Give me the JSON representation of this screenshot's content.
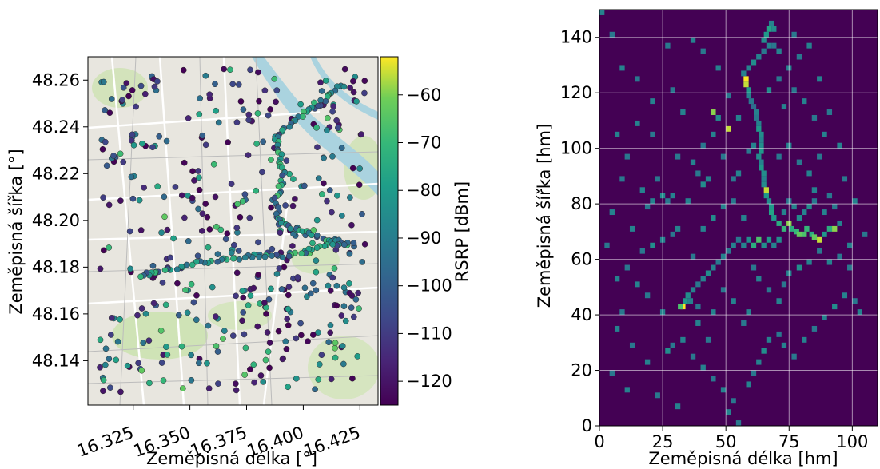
{
  "chart_data": [
    {
      "type": "scatter",
      "xlabel": "Zeměpisná délka [°]",
      "ylabel": "Zeměpisná šířka [°]",
      "xlim": [
        16.305,
        16.433
      ],
      "ylim": [
        48.121,
        48.27
      ],
      "xticks": [
        "16.325",
        "16.350",
        "16.375",
        "16.400",
        "16.425"
      ],
      "yticks": [
        "48.14",
        "48.16",
        "48.18",
        "48.20",
        "48.22",
        "48.24",
        "48.26"
      ],
      "colorbar": {
        "label": "RSRP [dBm]",
        "range": [
          -125,
          -52
        ],
        "ticks": [
          "−60",
          "−70",
          "−80",
          "−90",
          "−100",
          "−110",
          "−120"
        ],
        "colormap": "viridis"
      },
      "background": "street map of Vienna",
      "grid": false
    },
    {
      "type": "heatmap",
      "xlabel": "Zeměpisná délka [hm]",
      "ylabel": "Zeměpisná šířka [hm]",
      "xlim": [
        0,
        110
      ],
      "ylim": [
        0,
        150
      ],
      "xticks": [
        "0",
        "25",
        "50",
        "75",
        "100"
      ],
      "yticks": [
        "0",
        "20",
        "40",
        "60",
        "80",
        "100",
        "120",
        "140"
      ],
      "colormap": "viridis",
      "grid": true,
      "cells": [
        [
          57,
          124,
          1.0
        ],
        [
          57,
          122,
          0.95
        ],
        [
          58,
          120,
          0.6
        ],
        [
          58,
          118,
          0.5
        ],
        [
          59,
          116,
          0.45
        ],
        [
          60,
          114,
          0.4
        ],
        [
          61,
          112,
          0.5
        ],
        [
          61,
          110,
          0.45
        ],
        [
          62,
          108,
          0.5
        ],
        [
          62,
          106,
          0.6
        ],
        [
          63,
          104,
          0.55
        ],
        [
          63,
          102,
          0.5
        ],
        [
          63,
          100,
          0.55
        ],
        [
          63,
          98,
          0.6
        ],
        [
          62,
          96,
          0.55
        ],
        [
          63,
          94,
          0.5
        ],
        [
          63,
          92,
          0.6
        ],
        [
          64,
          90,
          0.55
        ],
        [
          64,
          88,
          0.5
        ],
        [
          64,
          86,
          0.55
        ],
        [
          65,
          84,
          0.95
        ],
        [
          65,
          82,
          0.6
        ],
        [
          66,
          80,
          0.55
        ],
        [
          67,
          78,
          0.6
        ],
        [
          67,
          76,
          0.65
        ],
        [
          68,
          74,
          0.6
        ],
        [
          70,
          72,
          0.7
        ],
        [
          72,
          70,
          0.75
        ],
        [
          74,
          72,
          0.9
        ],
        [
          75,
          70,
          0.7
        ],
        [
          77,
          69,
          0.75
        ],
        [
          78,
          68,
          0.85
        ],
        [
          80,
          68,
          0.8
        ],
        [
          81,
          70,
          0.75
        ],
        [
          83,
          68,
          0.7
        ],
        [
          84,
          67,
          0.85
        ],
        [
          86,
          66,
          0.95
        ],
        [
          88,
          68,
          0.6
        ],
        [
          90,
          70,
          0.7
        ],
        [
          92,
          70,
          0.9
        ],
        [
          94,
          72,
          0.5
        ],
        [
          78,
          74,
          0.55
        ],
        [
          80,
          76,
          0.5
        ],
        [
          82,
          78,
          0.55
        ],
        [
          84,
          80,
          0.45
        ],
        [
          76,
          78,
          0.5
        ],
        [
          74,
          80,
          0.45
        ],
        [
          72,
          76,
          0.5
        ],
        [
          70,
          66,
          0.55
        ],
        [
          68,
          64,
          0.5
        ],
        [
          66,
          66,
          0.6
        ],
        [
          64,
          64,
          0.55
        ],
        [
          62,
          66,
          0.8
        ],
        [
          60,
          64,
          0.7
        ],
        [
          58,
          66,
          0.55
        ],
        [
          56,
          64,
          0.5
        ],
        [
          54,
          66,
          0.45
        ],
        [
          52,
          64,
          0.5
        ],
        [
          50,
          62,
          0.45
        ],
        [
          48,
          60,
          0.5
        ],
        [
          46,
          58,
          0.45
        ],
        [
          44,
          56,
          0.5
        ],
        [
          42,
          54,
          0.55
        ],
        [
          40,
          52,
          0.5
        ],
        [
          38,
          50,
          0.45
        ],
        [
          36,
          48,
          0.5
        ],
        [
          34,
          46,
          0.55
        ],
        [
          33,
          44,
          0.6
        ],
        [
          32,
          42,
          1.0
        ],
        [
          31,
          42,
          0.8
        ],
        [
          35,
          44,
          0.5
        ],
        [
          38,
          42,
          0.45
        ],
        [
          64,
          138,
          0.55
        ],
        [
          65,
          140,
          0.6
        ],
        [
          66,
          142,
          0.65
        ],
        [
          67,
          144,
          0.5
        ],
        [
          68,
          142,
          0.55
        ],
        [
          66,
          136,
          0.5
        ],
        [
          64,
          134,
          0.45
        ],
        [
          62,
          132,
          0.5
        ],
        [
          60,
          130,
          0.55
        ],
        [
          58,
          128,
          0.5
        ],
        [
          56,
          126,
          0.5
        ],
        [
          68,
          136,
          0.45
        ],
        [
          70,
          134,
          0.5
        ],
        [
          60,
          100,
          0.5
        ],
        [
          58,
          98,
          0.45
        ],
        [
          50,
          106,
          0.95
        ],
        [
          44,
          112,
          0.9
        ],
        [
          46,
          110,
          0.55
        ],
        [
          54,
          90,
          0.5
        ],
        [
          52,
          88,
          0.45
        ],
        [
          42,
          88,
          0.5
        ],
        [
          40,
          86,
          0.55
        ],
        [
          38,
          90,
          0.45
        ],
        [
          36,
          94,
          0.5
        ],
        [
          30,
          96,
          0.45
        ],
        [
          28,
          82,
          0.5
        ],
        [
          26,
          80,
          0.45
        ],
        [
          24,
          82,
          0.55
        ],
        [
          20,
          80,
          0.5
        ],
        [
          18,
          78,
          0.45
        ],
        [
          16,
          84,
          0.5
        ],
        [
          22,
          88,
          0.45
        ],
        [
          32,
          112,
          0.5
        ],
        [
          28,
          120,
          0.45
        ],
        [
          20,
          116,
          0.5
        ],
        [
          14,
          124,
          0.45
        ],
        [
          8,
          128,
          0.5
        ],
        [
          4,
          140,
          0.45
        ],
        [
          0,
          148,
          0.5
        ],
        [
          26,
          136,
          0.45
        ],
        [
          36,
          138,
          0.5
        ],
        [
          40,
          134,
          0.45
        ],
        [
          46,
          128,
          0.5
        ],
        [
          50,
          118,
          0.45
        ],
        [
          30,
          70,
          0.5
        ],
        [
          28,
          68,
          0.45
        ],
        [
          24,
          66,
          0.5
        ],
        [
          20,
          64,
          0.55
        ],
        [
          16,
          62,
          0.45
        ],
        [
          12,
          70,
          0.5
        ],
        [
          10,
          56,
          0.45
        ],
        [
          14,
          50,
          0.5
        ],
        [
          18,
          46,
          0.45
        ],
        [
          24,
          40,
          0.5
        ],
        [
          26,
          26,
          0.55
        ],
        [
          28,
          28,
          0.45
        ],
        [
          32,
          30,
          0.5
        ],
        [
          36,
          24,
          0.45
        ],
        [
          40,
          20,
          0.5
        ],
        [
          44,
          16,
          0.45
        ],
        [
          48,
          12,
          0.5
        ],
        [
          52,
          8,
          0.45
        ],
        [
          50,
          4,
          0.5
        ],
        [
          54,
          0,
          0.45
        ],
        [
          58,
          14,
          0.5
        ],
        [
          60,
          18,
          0.45
        ],
        [
          62,
          22,
          0.5
        ],
        [
          64,
          26,
          0.55
        ],
        [
          66,
          30,
          0.5
        ],
        [
          70,
          32,
          0.45
        ],
        [
          72,
          28,
          0.5
        ],
        [
          76,
          24,
          0.45
        ],
        [
          80,
          30,
          0.5
        ],
        [
          84,
          34,
          0.45
        ],
        [
          88,
          38,
          0.5
        ],
        [
          92,
          42,
          0.55
        ],
        [
          96,
          46,
          0.5
        ],
        [
          100,
          44,
          0.45
        ],
        [
          102,
          40,
          0.5
        ],
        [
          98,
          56,
          0.45
        ],
        [
          90,
          58,
          0.5
        ],
        [
          86,
          62,
          0.45
        ],
        [
          82,
          58,
          0.5
        ],
        [
          78,
          56,
          0.55
        ],
        [
          74,
          54,
          0.5
        ],
        [
          72,
          50,
          0.45
        ],
        [
          70,
          44,
          0.5
        ],
        [
          66,
          48,
          0.45
        ],
        [
          62,
          52,
          0.5
        ],
        [
          60,
          56,
          0.45
        ],
        [
          58,
          40,
          0.5
        ],
        [
          56,
          36,
          0.45
        ],
        [
          52,
          44,
          0.5
        ],
        [
          48,
          48,
          0.45
        ],
        [
          44,
          40,
          0.5
        ],
        [
          42,
          30,
          0.45
        ],
        [
          38,
          36,
          0.5
        ],
        [
          8,
          40,
          0.45
        ],
        [
          6,
          34,
          0.5
        ],
        [
          12,
          28,
          0.45
        ],
        [
          18,
          22,
          0.5
        ],
        [
          4,
          18,
          0.45
        ],
        [
          10,
          12,
          0.5
        ],
        [
          22,
          10,
          0.45
        ],
        [
          30,
          6,
          0.5
        ],
        [
          70,
          96,
          0.45
        ],
        [
          74,
          100,
          0.5
        ],
        [
          78,
          94,
          0.45
        ],
        [
          82,
          90,
          0.5
        ],
        [
          86,
          96,
          0.45
        ],
        [
          88,
          104,
          0.5
        ],
        [
          84,
          110,
          0.45
        ],
        [
          80,
          116,
          0.5
        ],
        [
          76,
          120,
          0.45
        ],
        [
          72,
          114,
          0.5
        ],
        [
          66,
          120,
          0.55
        ],
        [
          70,
          124,
          0.45
        ],
        [
          74,
          128,
          0.5
        ],
        [
          78,
          132,
          0.45
        ],
        [
          82,
          136,
          0.5
        ],
        [
          76,
          140,
          0.45
        ],
        [
          86,
          124,
          0.5
        ],
        [
          90,
          112,
          0.45
        ],
        [
          94,
          100,
          0.5
        ],
        [
          96,
          88,
          0.45
        ],
        [
          100,
          80,
          0.5
        ],
        [
          104,
          68,
          0.45
        ],
        [
          98,
          64,
          0.5
        ],
        [
          94,
          60,
          0.45
        ],
        [
          40,
          70,
          0.5
        ],
        [
          44,
          74,
          0.55
        ],
        [
          48,
          78,
          0.5
        ],
        [
          52,
          80,
          0.45
        ],
        [
          56,
          74,
          0.5
        ],
        [
          36,
          60,
          0.45
        ],
        [
          34,
          80,
          0.5
        ],
        [
          40,
          100,
          0.45
        ],
        [
          44,
          104,
          0.5
        ],
        [
          48,
          96,
          0.45
        ],
        [
          54,
          110,
          0.5
        ],
        [
          20,
          104,
          0.45
        ],
        [
          14,
          108,
          0.5
        ],
        [
          10,
          96,
          0.45
        ],
        [
          6,
          104,
          0.5
        ],
        [
          8,
          88,
          0.45
        ],
        [
          4,
          76,
          0.5
        ],
        [
          2,
          64,
          0.45
        ],
        [
          6,
          52,
          0.5
        ],
        [
          90,
          82,
          0.45
        ],
        [
          88,
          76,
          0.5
        ],
        [
          92,
          78,
          0.45
        ],
        [
          84,
          84,
          0.5
        ]
      ]
    }
  ]
}
